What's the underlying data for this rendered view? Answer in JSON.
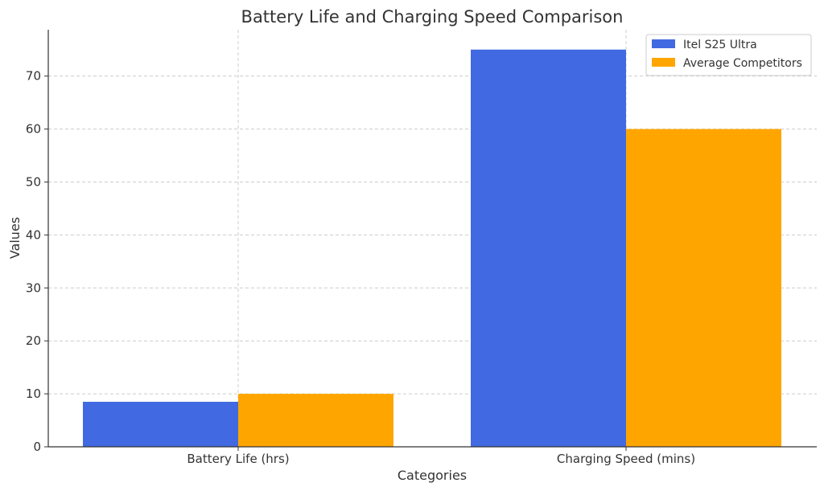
{
  "chart_data": {
    "type": "bar",
    "title": "Battery Life and Charging Speed Comparison",
    "xlabel": "Categories",
    "ylabel": "Values",
    "categories": [
      "Battery Life (hrs)",
      "Charging Speed (mins)"
    ],
    "series": [
      {
        "name": "Itel S25 Ultra",
        "values": [
          8.5,
          75
        ],
        "color": "#4169e1"
      },
      {
        "name": "Average Competitors",
        "values": [
          10,
          60
        ],
        "color": "#ffa500"
      }
    ],
    "ylim": [
      0,
      78.75
    ],
    "yticks": [
      0,
      10,
      20,
      30,
      40,
      50,
      60,
      70
    ],
    "grid": true,
    "legend": "top-right"
  }
}
